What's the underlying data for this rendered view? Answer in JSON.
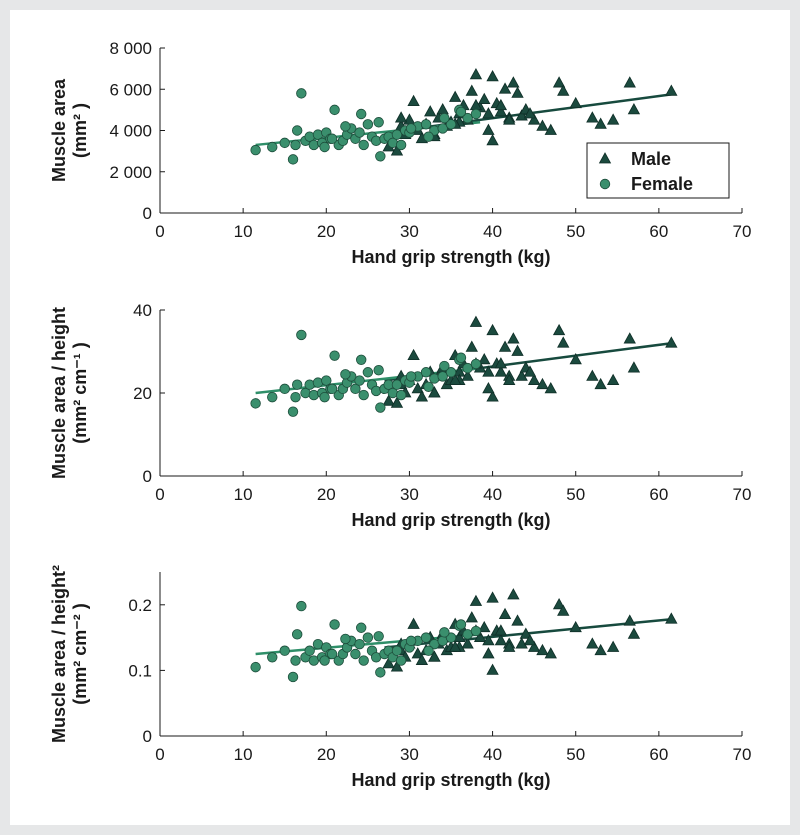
{
  "colors": {
    "male": "#1b4a3e",
    "female": "#3a8f6d",
    "male_line": "#174a3e",
    "female_line": "#2f8f69",
    "axis": "#1a1a1a"
  },
  "chart_data": [
    {
      "type": "scatter",
      "id": "area",
      "xlabel": "Hand grip strength (kg)",
      "ylabel_line1": "Muscle area",
      "ylabel_line2": "(mm² )",
      "xlim": [
        0,
        70
      ],
      "ylim": [
        0,
        8000
      ],
      "xticks": [
        0,
        10,
        20,
        30,
        40,
        50,
        60,
        70
      ],
      "yticks": [
        0,
        2000,
        4000,
        6000,
        8000
      ],
      "ytick_labels": [
        "0",
        "2 000",
        "4 000",
        "6 000",
        "8 000"
      ],
      "legend": {
        "position": "lower-right",
        "entries": [
          "Male",
          "Female"
        ]
      },
      "series": [
        {
          "name": "Male",
          "marker": "triangle",
          "x": [
            27.5,
            28.5,
            29.0,
            29.5,
            30.0,
            30.5,
            31.0,
            31.5,
            32.0,
            32.5,
            33.0,
            33.5,
            34.0,
            34.5,
            35.0,
            35.5,
            36.0,
            36.5,
            37.0,
            37.5,
            38.0,
            38.5,
            39.0,
            39.5,
            40.0,
            40.5,
            41.0,
            41.5,
            42.0,
            42.5,
            43.0,
            43.5,
            44.0,
            45.0,
            46.0,
            47.0,
            48.0,
            48.5,
            50.0,
            52.0,
            53.0,
            54.5,
            56.5,
            57.0,
            61.5,
            36.0,
            38.0,
            40.0,
            42.0,
            44.5,
            29.0,
            33.0,
            35.5,
            39.5,
            41.0
          ],
          "y": [
            3200,
            3000,
            4200,
            3800,
            4500,
            5400,
            4000,
            3600,
            4300,
            4900,
            3800,
            4600,
            5000,
            4200,
            4400,
            5600,
            4800,
            5200,
            4500,
            5900,
            6700,
            5100,
            5500,
            4800,
            6600,
            5300,
            4900,
            6000,
            4600,
            6300,
            5800,
            4700,
            5000,
            4500,
            4200,
            4000,
            6300,
            5900,
            5300,
            4600,
            4300,
            4500,
            6300,
            5000,
            5900,
            4400,
            5200,
            3500,
            4500,
            4800,
            4600,
            3700,
            4300,
            4000,
            5200
          ]
        },
        {
          "name": "Female",
          "marker": "circle",
          "x": [
            11.5,
            13.5,
            15.0,
            16.0,
            16.5,
            17.0,
            17.5,
            18.0,
            18.5,
            19.0,
            19.5,
            20.0,
            20.5,
            21.0,
            21.5,
            22.0,
            22.5,
            23.0,
            23.5,
            24.0,
            24.5,
            25.0,
            25.5,
            26.0,
            26.5,
            27.0,
            27.5,
            28.0,
            28.5,
            29.0,
            29.5,
            30.0,
            31.0,
            32.0,
            33.0,
            34.0,
            35.0,
            36.0,
            37.0,
            38.0,
            16.3,
            19.8,
            22.3,
            24.2,
            26.3,
            30.2,
            32.3,
            34.2,
            36.2,
            20.7
          ],
          "y": [
            3050,
            3200,
            3400,
            2600,
            4000,
            5800,
            3500,
            3700,
            3300,
            3800,
            3400,
            3900,
            3600,
            5000,
            3300,
            3500,
            3800,
            4100,
            3600,
            3900,
            3300,
            4300,
            3700,
            3500,
            2750,
            3600,
            3700,
            3400,
            3800,
            3300,
            4000,
            3900,
            4200,
            4300,
            4000,
            4100,
            4300,
            5000,
            4600,
            4800,
            3300,
            3200,
            4200,
            4800,
            4400,
            4100,
            3700,
            4600,
            4900,
            3600
          ]
        }
      ],
      "regression": [
        {
          "name": "Male",
          "x": [
            27,
            61.5
          ],
          "y": [
            3900,
            5750
          ]
        },
        {
          "name": "Female",
          "x": [
            11.5,
            38.5
          ],
          "y": [
            3300,
            4400
          ]
        }
      ]
    },
    {
      "type": "scatter",
      "id": "area_height",
      "xlabel": "Hand grip strength (kg)",
      "ylabel_line1": "Muscle area / height",
      "ylabel_line2": "(mm² cm⁻¹ )",
      "xlim": [
        0,
        70
      ],
      "ylim": [
        0,
        40
      ],
      "xticks": [
        0,
        10,
        20,
        30,
        40,
        50,
        60,
        70
      ],
      "yticks": [
        0,
        20,
        40
      ],
      "ytick_labels": [
        "0",
        "20",
        "40"
      ],
      "series": [
        {
          "name": "Male",
          "marker": "triangle",
          "x": [
            27.5,
            28.5,
            29.0,
            29.5,
            30.0,
            30.5,
            31.0,
            31.5,
            32.0,
            32.5,
            33.0,
            33.5,
            34.0,
            34.5,
            35.0,
            35.5,
            36.0,
            36.5,
            37.0,
            37.5,
            38.0,
            38.5,
            39.0,
            39.5,
            40.0,
            40.5,
            41.0,
            41.5,
            42.0,
            42.5,
            43.0,
            43.5,
            44.0,
            45.0,
            46.0,
            47.0,
            48.0,
            48.5,
            50.0,
            52.0,
            53.0,
            54.5,
            56.5,
            57.0,
            61.5,
            36.0,
            38.0,
            40.0,
            42.0,
            44.5,
            29.0,
            33.0,
            35.5,
            39.5,
            41.0
          ],
          "y": [
            18,
            17.5,
            22,
            20,
            23,
            29,
            21,
            19,
            22,
            25,
            20,
            24,
            26,
            22,
            23,
            29,
            25,
            27,
            24,
            31,
            37,
            26,
            28,
            25,
            35,
            27,
            25,
            31,
            24,
            33,
            30,
            24,
            26,
            23,
            22,
            21,
            35,
            32,
            28,
            24,
            22,
            23,
            33,
            26,
            32,
            23,
            27,
            19,
            23,
            25,
            24,
            20,
            23,
            21,
            27
          ]
        },
        {
          "name": "Female",
          "marker": "circle",
          "x": [
            11.5,
            13.5,
            15.0,
            16.0,
            16.5,
            17.0,
            17.5,
            18.0,
            18.5,
            19.0,
            19.5,
            20.0,
            20.5,
            21.0,
            21.5,
            22.0,
            22.5,
            23.0,
            23.5,
            24.0,
            24.5,
            25.0,
            25.5,
            26.0,
            26.5,
            27.0,
            27.5,
            28.0,
            28.5,
            29.0,
            29.5,
            30.0,
            31.0,
            32.0,
            33.0,
            34.0,
            35.0,
            36.0,
            37.0,
            38.0,
            16.3,
            19.8,
            22.3,
            24.2,
            26.3,
            30.2,
            32.3,
            34.2,
            36.2,
            20.7
          ],
          "y": [
            17.5,
            19,
            21,
            15.5,
            22,
            34,
            20,
            22,
            19.5,
            22.5,
            20,
            23,
            21,
            29,
            19.5,
            21,
            22.5,
            24,
            21,
            23,
            19.5,
            25,
            22,
            20.5,
            16.5,
            21,
            22,
            20,
            22,
            19.5,
            23,
            22.5,
            24,
            25,
            23.5,
            24,
            25,
            28,
            26,
            27,
            19,
            19,
            24.5,
            28,
            25.5,
            24,
            21.5,
            26.5,
            28.5,
            21
          ]
        }
      ],
      "regression": [
        {
          "name": "Male",
          "x": [
            27,
            61.5
          ],
          "y": [
            23,
            32
          ]
        },
        {
          "name": "Female",
          "x": [
            11.5,
            38.5
          ],
          "y": [
            20,
            26
          ]
        }
      ]
    },
    {
      "type": "scatter",
      "id": "area_height2",
      "xlabel": "Hand grip strength (kg)",
      "ylabel_line1": "Muscle area / height²",
      "ylabel_line2": "(mm² cm⁻² )",
      "xlim": [
        0,
        70
      ],
      "ylim": [
        0,
        0.25
      ],
      "xticks": [
        0,
        10,
        20,
        30,
        40,
        50,
        60,
        70
      ],
      "yticks": [
        0,
        0.1,
        0.2
      ],
      "ytick_labels": [
        "0",
        "0.1",
        "0.2"
      ],
      "series": [
        {
          "name": "Male",
          "marker": "triangle",
          "x": [
            27.5,
            28.5,
            29.0,
            29.5,
            30.0,
            30.5,
            31.0,
            31.5,
            32.0,
            32.5,
            33.0,
            33.5,
            34.0,
            34.5,
            35.0,
            35.5,
            36.0,
            36.5,
            37.0,
            37.5,
            38.0,
            38.5,
            39.0,
            39.5,
            40.0,
            40.5,
            41.0,
            41.5,
            42.0,
            42.5,
            43.0,
            43.5,
            44.0,
            45.0,
            46.0,
            47.0,
            48.0,
            48.5,
            50.0,
            52.0,
            53.0,
            54.5,
            56.5,
            57.0,
            61.5,
            36.0,
            38.0,
            40.0,
            42.0,
            44.5,
            29.0,
            33.0,
            35.5,
            39.5,
            41.0
          ],
          "y": [
            0.11,
            0.105,
            0.13,
            0.12,
            0.14,
            0.17,
            0.125,
            0.115,
            0.13,
            0.15,
            0.12,
            0.14,
            0.155,
            0.13,
            0.135,
            0.17,
            0.15,
            0.16,
            0.14,
            0.18,
            0.205,
            0.15,
            0.165,
            0.145,
            0.21,
            0.16,
            0.145,
            0.185,
            0.14,
            0.215,
            0.175,
            0.14,
            0.155,
            0.135,
            0.13,
            0.125,
            0.2,
            0.19,
            0.165,
            0.14,
            0.13,
            0.135,
            0.175,
            0.155,
            0.178,
            0.135,
            0.16,
            0.1,
            0.135,
            0.145,
            0.14,
            0.12,
            0.135,
            0.125,
            0.16
          ]
        },
        {
          "name": "Female",
          "marker": "circle",
          "x": [
            11.5,
            13.5,
            15.0,
            16.0,
            16.5,
            17.0,
            17.5,
            18.0,
            18.5,
            19.0,
            19.5,
            20.0,
            20.5,
            21.0,
            21.5,
            22.0,
            22.5,
            23.0,
            23.5,
            24.0,
            24.5,
            25.0,
            25.5,
            26.0,
            26.5,
            27.0,
            27.5,
            28.0,
            28.5,
            29.0,
            29.5,
            30.0,
            31.0,
            32.0,
            33.0,
            34.0,
            35.0,
            36.0,
            37.0,
            38.0,
            16.3,
            19.8,
            22.3,
            24.2,
            26.3,
            30.2,
            32.3,
            34.2,
            36.2,
            20.7
          ],
          "y": [
            0.105,
            0.12,
            0.13,
            0.09,
            0.155,
            0.198,
            0.12,
            0.13,
            0.115,
            0.14,
            0.12,
            0.135,
            0.125,
            0.17,
            0.115,
            0.125,
            0.135,
            0.145,
            0.125,
            0.14,
            0.115,
            0.15,
            0.13,
            0.12,
            0.097,
            0.125,
            0.13,
            0.12,
            0.13,
            0.115,
            0.14,
            0.135,
            0.145,
            0.15,
            0.14,
            0.145,
            0.15,
            0.168,
            0.155,
            0.16,
            0.115,
            0.115,
            0.148,
            0.165,
            0.152,
            0.145,
            0.13,
            0.158,
            0.17,
            0.125
          ]
        }
      ],
      "regression": [
        {
          "name": "Male",
          "x": [
            27,
            61.5
          ],
          "y": [
            0.135,
            0.178
          ]
        },
        {
          "name": "Female",
          "x": [
            11.5,
            38.5
          ],
          "y": [
            0.125,
            0.155
          ]
        }
      ]
    }
  ]
}
